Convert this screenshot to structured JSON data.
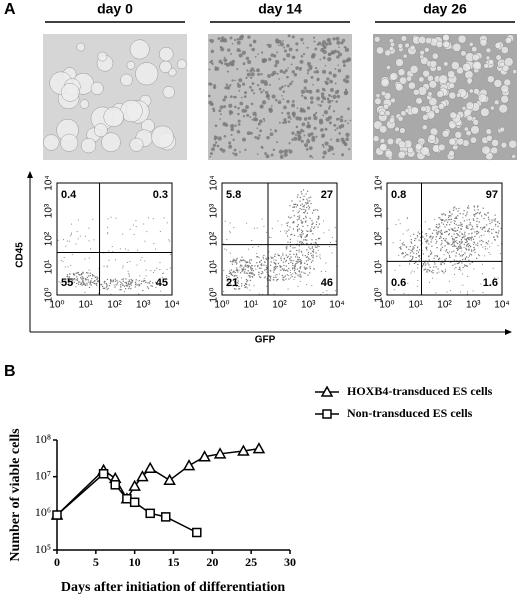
{
  "panel_a": {
    "label": "A",
    "columns": [
      {
        "title": "day 0",
        "quadrants": [
          0.4,
          0.3,
          55,
          45
        ]
      },
      {
        "title": "day 14",
        "quadrants": [
          5.8,
          27,
          21,
          46
        ]
      },
      {
        "title": "day 26",
        "quadrants": [
          0.8,
          97,
          0.6,
          1.6
        ]
      }
    ],
    "flow_ticks": [
      "10⁰",
      "10¹",
      "10²",
      "10³",
      "10⁴"
    ],
    "x_label": "GFP",
    "y_label": "CD45"
  },
  "chart_data": {
    "type": "line",
    "panel_label": "B",
    "x_label": "Days after initiation of differentiation",
    "y_label": "Number of viable cells",
    "xlim": [
      0,
      30
    ],
    "xticks": [
      0,
      5,
      10,
      15,
      20,
      25,
      30
    ],
    "ylim": [
      100000,
      100000000
    ],
    "yticks": [
      {
        "value": 100000,
        "label": "10⁵"
      },
      {
        "value": 1000000,
        "label": "10⁶"
      },
      {
        "value": 10000000,
        "label": "10⁷"
      },
      {
        "value": 100000000,
        "label": "10⁸"
      }
    ],
    "y_log": true,
    "legend": "upper right",
    "series": [
      {
        "name": "HOXB4-transduced ES cells",
        "color": "#000000",
        "marker": "triangle",
        "x": [
          0,
          6,
          7.5,
          9,
          10,
          11,
          12,
          14.5,
          17,
          19,
          21,
          24,
          26
        ],
        "values": [
          900000,
          15000000,
          9000000,
          2500000,
          5500000,
          10000000,
          17000000,
          8000000,
          20000000,
          35000000,
          42000000,
          50000000,
          58000000
        ]
      },
      {
        "name": "Non-transduced ES cells",
        "color": "#000000",
        "marker": "square",
        "x": [
          0,
          6,
          7.5,
          9,
          10,
          12,
          14,
          18
        ],
        "values": [
          900000,
          12000000,
          6000000,
          2500000,
          2000000,
          1000000,
          800000,
          300000
        ]
      }
    ]
  }
}
